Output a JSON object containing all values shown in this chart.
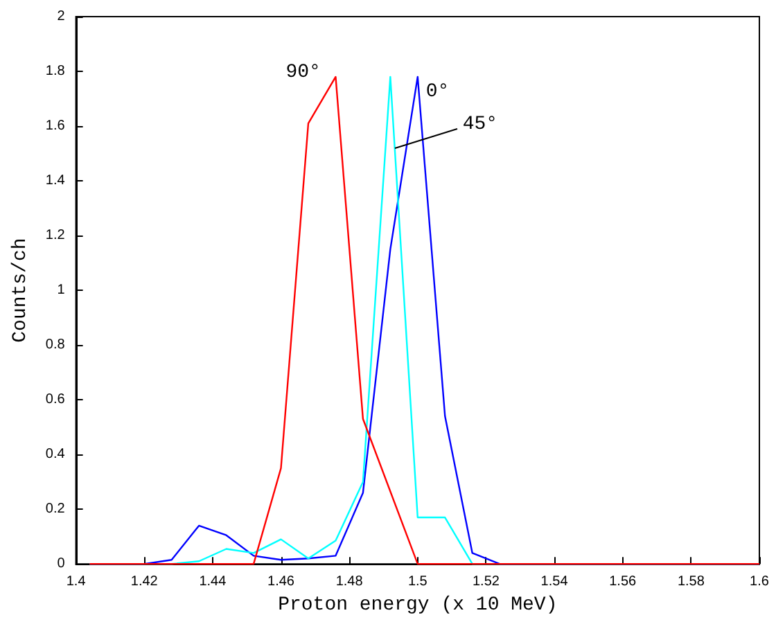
{
  "chart_data": {
    "type": "line",
    "xlabel": "Proton energy (x 10 MeV)",
    "ylabel": "Counts/ch",
    "xlim": [
      1.4,
      1.6
    ],
    "xticks": [
      1.4,
      1.42,
      1.44,
      1.46,
      1.48,
      1.5,
      1.52,
      1.54,
      1.56,
      1.58,
      1.6
    ],
    "ylim": [
      0,
      2
    ],
    "yticks": [
      0,
      0.2,
      0.4,
      0.6,
      0.8,
      1,
      1.2,
      1.4,
      1.6,
      1.8,
      2
    ],
    "grid": false,
    "marker": "none",
    "line_style": "solid",
    "annotations": [
      {
        "text": "0°",
        "x": 1.5,
        "y": 1.78
      },
      {
        "text": "45°",
        "x": 1.4933,
        "y": 1.52
      },
      {
        "text": "90°",
        "x": 1.476,
        "y": 1.78
      }
    ],
    "series": [
      {
        "color": "#0000ff",
        "x": [
          1.404,
          1.42,
          1.428,
          1.436,
          1.444,
          1.452,
          1.46,
          1.468,
          1.476,
          1.484,
          1.492,
          1.5,
          1.508,
          1.516,
          1.524,
          1.6
        ],
        "values": [
          0,
          0,
          0.015,
          0.14,
          0.105,
          0.03,
          0.015,
          0.02,
          0.03,
          0.26,
          1.15,
          1.78,
          0.54,
          0.04,
          0,
          0
        ]
      },
      {
        "color": "#00ffff",
        "x": [
          1.404,
          1.428,
          1.436,
          1.444,
          1.452,
          1.46,
          1.468,
          1.476,
          1.484,
          1.492,
          1.5,
          1.508,
          1.516,
          1.6
        ],
        "values": [
          0,
          0,
          0.01,
          0.055,
          0.04,
          0.09,
          0.02,
          0.085,
          0.3,
          1.78,
          0.17,
          0.17,
          0,
          0
        ]
      },
      {
        "color": "#ff0000",
        "x": [
          1.404,
          1.452,
          1.46,
          1.468,
          1.476,
          1.484,
          1.5,
          1.6
        ],
        "values": [
          0,
          0,
          0.35,
          1.61,
          1.78,
          0.53,
          0,
          0
        ]
      }
    ]
  }
}
